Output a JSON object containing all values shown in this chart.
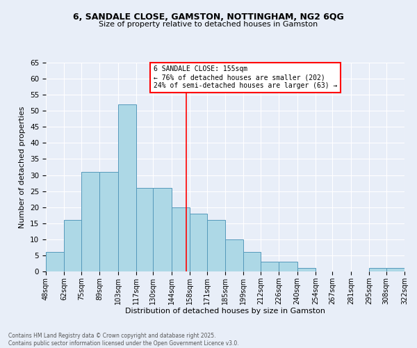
{
  "title": "6, SANDALE CLOSE, GAMSTON, NOTTINGHAM, NG2 6QG",
  "subtitle": "Size of property relative to detached houses in Gamston",
  "xlabel": "Distribution of detached houses by size in Gamston",
  "ylabel": "Number of detached properties",
  "bar_color": "#add8e6",
  "bar_edgecolor": "#5599bb",
  "background_color": "#e8eef8",
  "grid_color": "#ffffff",
  "bins": [
    48,
    62,
    75,
    89,
    103,
    117,
    130,
    144,
    158,
    171,
    185,
    199,
    212,
    226,
    240,
    254,
    267,
    281,
    295,
    308,
    322
  ],
  "counts": [
    6,
    16,
    31,
    31,
    52,
    26,
    26,
    20,
    18,
    16,
    10,
    6,
    3,
    3,
    1,
    0,
    0,
    0,
    1,
    1
  ],
  "tick_labels": [
    "48sqm",
    "62sqm",
    "75sqm",
    "89sqm",
    "103sqm",
    "117sqm",
    "130sqm",
    "144sqm",
    "158sqm",
    "171sqm",
    "185sqm",
    "199sqm",
    "212sqm",
    "226sqm",
    "240sqm",
    "254sqm",
    "267sqm",
    "281sqm",
    "295sqm",
    "308sqm",
    "322sqm"
  ],
  "vline_x": 155,
  "annotation_title": "6 SANDALE CLOSE: 155sqm",
  "annotation_line1": "← 76% of detached houses are smaller (202)",
  "annotation_line2": "24% of semi-detached houses are larger (63) →",
  "ylim": [
    0,
    65
  ],
  "yticks": [
    0,
    5,
    10,
    15,
    20,
    25,
    30,
    35,
    40,
    45,
    50,
    55,
    60,
    65
  ],
  "footer_line1": "Contains HM Land Registry data © Crown copyright and database right 2025.",
  "footer_line2": "Contains public sector information licensed under the Open Government Licence v3.0."
}
